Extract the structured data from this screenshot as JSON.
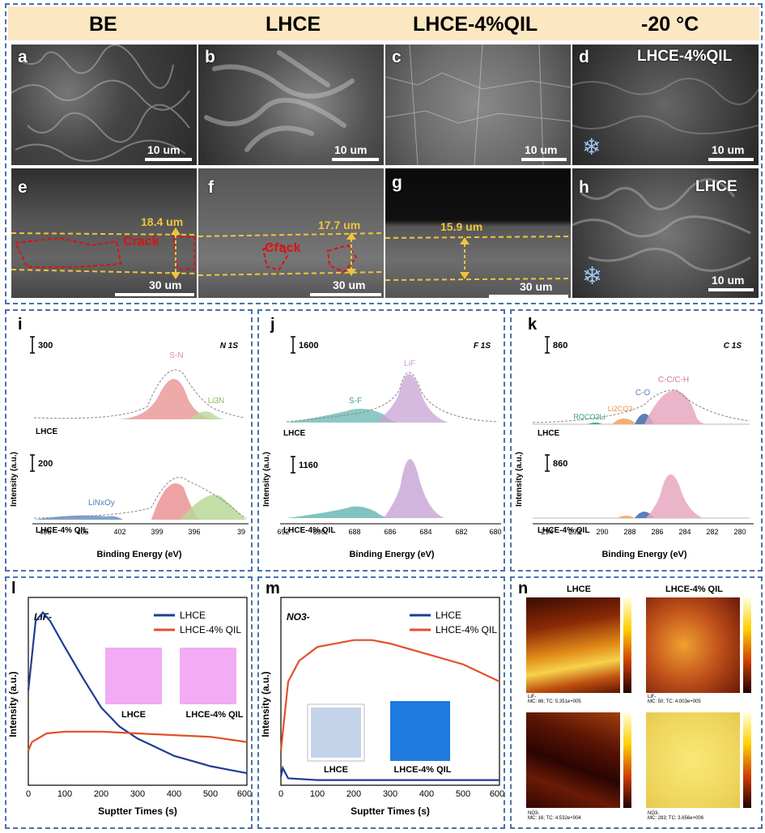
{
  "header": {
    "col1": "BE",
    "col2": "LHCE",
    "col3": "LHCE-4%QIL",
    "col4": "-20 °C"
  },
  "sem_top": [
    {
      "label": "a",
      "scale": "10 um"
    },
    {
      "label": "b",
      "scale": "10 um"
    },
    {
      "label": "c",
      "scale": "10 um"
    },
    {
      "label": "d",
      "scale": "10 um",
      "title": "LHCE-4%QIL"
    }
  ],
  "sem_bottom": [
    {
      "label": "e",
      "scale": "30 um",
      "thickness": "18.4 um",
      "crack": "Crack"
    },
    {
      "label": "f",
      "scale": "30 um",
      "thickness": "17.7 um",
      "crack": "Crack"
    },
    {
      "label": "g",
      "scale": "30 um",
      "thickness": "15.9 um"
    },
    {
      "label": "h",
      "scale": "10 um",
      "title": "LHCE"
    }
  ],
  "xps": [
    {
      "label": "i",
      "element": "N 1S",
      "top_scale": "300",
      "bottom_scale": "200",
      "top_sample": "LHCE",
      "bottom_sample": "LHCE-4% QIL",
      "peaks": {
        "p1": "S-N",
        "p2": "Li3N",
        "p3": "LiNxOy"
      },
      "ticks": [
        "408",
        "405",
        "402",
        "399",
        "396",
        "39"
      ]
    },
    {
      "label": "j",
      "element": "F 1S",
      "top_scale": "1600",
      "bottom_scale": "1160",
      "top_sample": "LHCE",
      "bottom_sample": "LHCE-4% QIL",
      "peaks": {
        "p1": "LiF",
        "p2": "S-F"
      },
      "ticks": [
        "692",
        "690",
        "688",
        "686",
        "684",
        "682",
        "680"
      ]
    },
    {
      "label": "k",
      "element": "C 1S",
      "top_scale": "860",
      "bottom_scale": "860",
      "top_sample": "LHCE",
      "bottom_sample": "LHCE-4% QIL",
      "peaks": {
        "p1": "C-C/C-H",
        "p2": "C-O",
        "p3": "Li2CO3",
        "p4": "ROCO2Li"
      },
      "ticks": [
        "294",
        "292",
        "290",
        "288",
        "286",
        "284",
        "282",
        "280"
      ]
    }
  ],
  "xps_axes": {
    "xlabel": "Binding Energy (eV)",
    "ylabel": "Intensity (a.u.)"
  },
  "tof": {
    "xlabel": "Suptter Times (s)",
    "ylabel": "Intensity (a.u.)",
    "xticks": [
      "0",
      "100",
      "200",
      "300",
      "400",
      "500",
      "600"
    ],
    "l": {
      "label": "l",
      "species": "LiF-",
      "legend1": "LHCE",
      "legend2": "LHCE-4% QIL",
      "cube1": "LHCE",
      "cube2": "LHCE-4% QIL"
    },
    "m": {
      "label": "m",
      "species": "NO3-",
      "legend1": "LHCE",
      "legend2": "LHCE-4% QIL",
      "cube1": "LHCE",
      "cube2": "LHCE-4% QIL"
    }
  },
  "chart_data": [
    {
      "type": "line",
      "title": "LiF-",
      "xlabel": "Suptter Times (s)",
      "ylabel": "Intensity (a.u.)",
      "xlim": [
        0,
        600
      ],
      "series": [
        {
          "name": "LHCE",
          "x": [
            0,
            20,
            40,
            60,
            100,
            150,
            200,
            250,
            300,
            350,
            400,
            450,
            500,
            550,
            600
          ],
          "y": [
            0.55,
            0.95,
            1.0,
            0.95,
            0.8,
            0.62,
            0.45,
            0.34,
            0.27,
            0.22,
            0.17,
            0.14,
            0.11,
            0.09,
            0.07
          ]
        },
        {
          "name": "LHCE-4% QIL",
          "x": [
            0,
            10,
            50,
            100,
            200,
            300,
            400,
            500,
            600
          ],
          "y": [
            0.2,
            0.25,
            0.3,
            0.31,
            0.31,
            0.3,
            0.29,
            0.28,
            0.25
          ]
        }
      ]
    },
    {
      "type": "line",
      "title": "NO3-",
      "xlabel": "Suptter Times (s)",
      "ylabel": "Intensity (a.u.)",
      "xlim": [
        0,
        600
      ],
      "series": [
        {
          "name": "LHCE",
          "x": [
            0,
            5,
            20,
            100,
            300,
            600
          ],
          "y": [
            0.05,
            0.1,
            0.04,
            0.03,
            0.03,
            0.03
          ]
        },
        {
          "name": "LHCE-4% QIL",
          "x": [
            0,
            20,
            50,
            100,
            200,
            250,
            300,
            400,
            500,
            600
          ],
          "y": [
            0.2,
            0.6,
            0.72,
            0.8,
            0.84,
            0.84,
            0.82,
            0.76,
            0.7,
            0.6
          ]
        }
      ]
    }
  ],
  "maps": {
    "label": "n",
    "col1": "LHCE",
    "col2": "LHCE-4% QIL",
    "row1_caps": [
      "LiF-\nMC: 86; TC: 5.351e+005",
      "LiF-\nMC: 50; TC: 4.003e+005"
    ],
    "row2_caps": [
      "NO3-\nMC: 16; TC: 4.532e+004",
      "NO3-\nMC: 283; TC: 3.656e+006"
    ]
  },
  "colors": {
    "blue": "#1f3c96",
    "red": "#e2502a",
    "frame": "#4a72a8"
  }
}
